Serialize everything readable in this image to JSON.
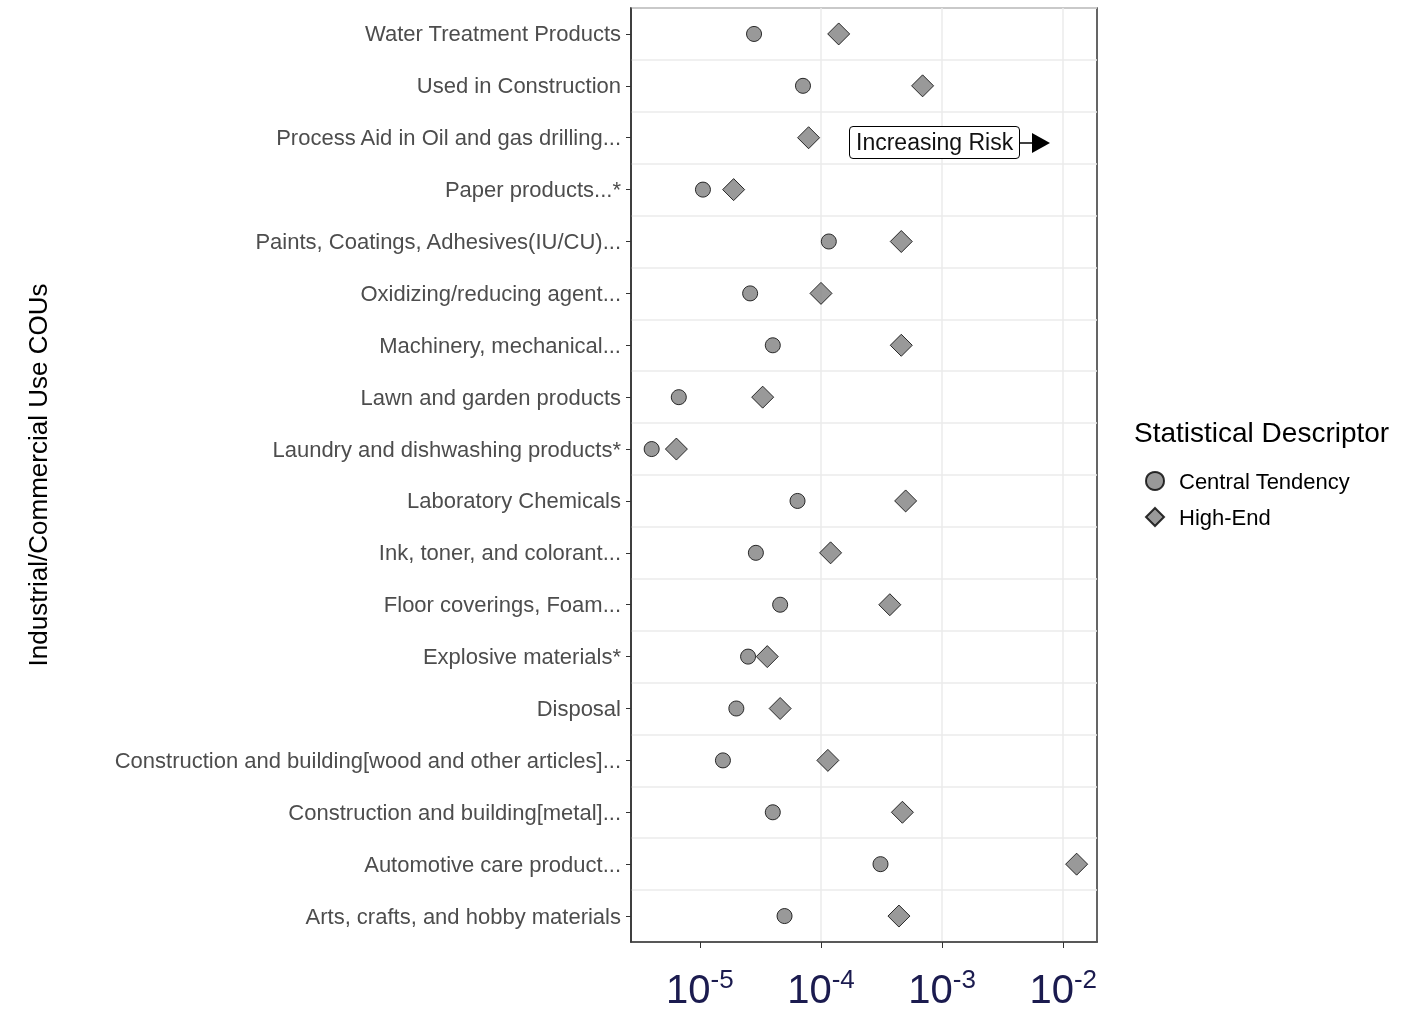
{
  "chart_data": {
    "type": "scatter",
    "ylabel": "Industrial/Commercial Use COUs",
    "legend_title": "Statistical Descriptor",
    "legend": "right",
    "log": "x",
    "orientation": "horizontal",
    "grid": true,
    "categories": [
      "Water Treatment Products",
      "Used in Construction",
      "Process Aid in Oil and gas drilling...",
      "Paper products...*",
      "Paints, Coatings, Adhesives(IU/CU)...",
      "Oxidizing/reducing agent...",
      "Machinery, mechanical...",
      "Lawn and garden products",
      "Laundry and dishwashing products*",
      "Laboratory Chemicals",
      "Ink, toner, and colorant...",
      "Floor coverings, Foam...",
      "Explosive materials*",
      "Disposal",
      "Construction and building[wood and other articles]...",
      "Construction and building[metal]...",
      "Automotive care product...",
      "Arts, crafts, and hobby materials"
    ],
    "xlim": [
      2.7e-06,
      0.019
    ],
    "xticks": [
      {
        "value": 1e-05,
        "label": "10$^{-5}$"
      },
      {
        "value": 0.0001,
        "label": "10$^{-4}$"
      },
      {
        "value": 0.001,
        "label": "10$^{-3}$"
      },
      {
        "value": 0.01,
        "label": "10$^{-2}$"
      }
    ],
    "annotations": [
      "Increasing Risk"
    ],
    "series": [
      {
        "name": "Central Tendency",
        "marker": "circle",
        "color": "#7f7f7f",
        "values": [
          2.8e-05,
          7.1e-05,
          null,
          1.06e-05,
          0.000116,
          2.6e-05,
          4e-05,
          6.7e-06,
          4e-06,
          6.4e-05,
          2.9e-05,
          4.6e-05,
          2.5e-05,
          2e-05,
          1.55e-05,
          4e-05,
          0.00031,
          5e-05
        ]
      },
      {
        "name": "High-End",
        "marker": "diamond",
        "color": "#7f7f7f",
        "values": [
          0.00014,
          0.00069,
          7.9e-05,
          1.9e-05,
          0.00046,
          0.0001,
          0.00046,
          3.3e-05,
          6.4e-06,
          0.0005,
          0.00012,
          0.00037,
          3.6e-05,
          4.6e-05,
          0.000114,
          0.00047,
          0.0129,
          0.00044
        ]
      }
    ]
  }
}
